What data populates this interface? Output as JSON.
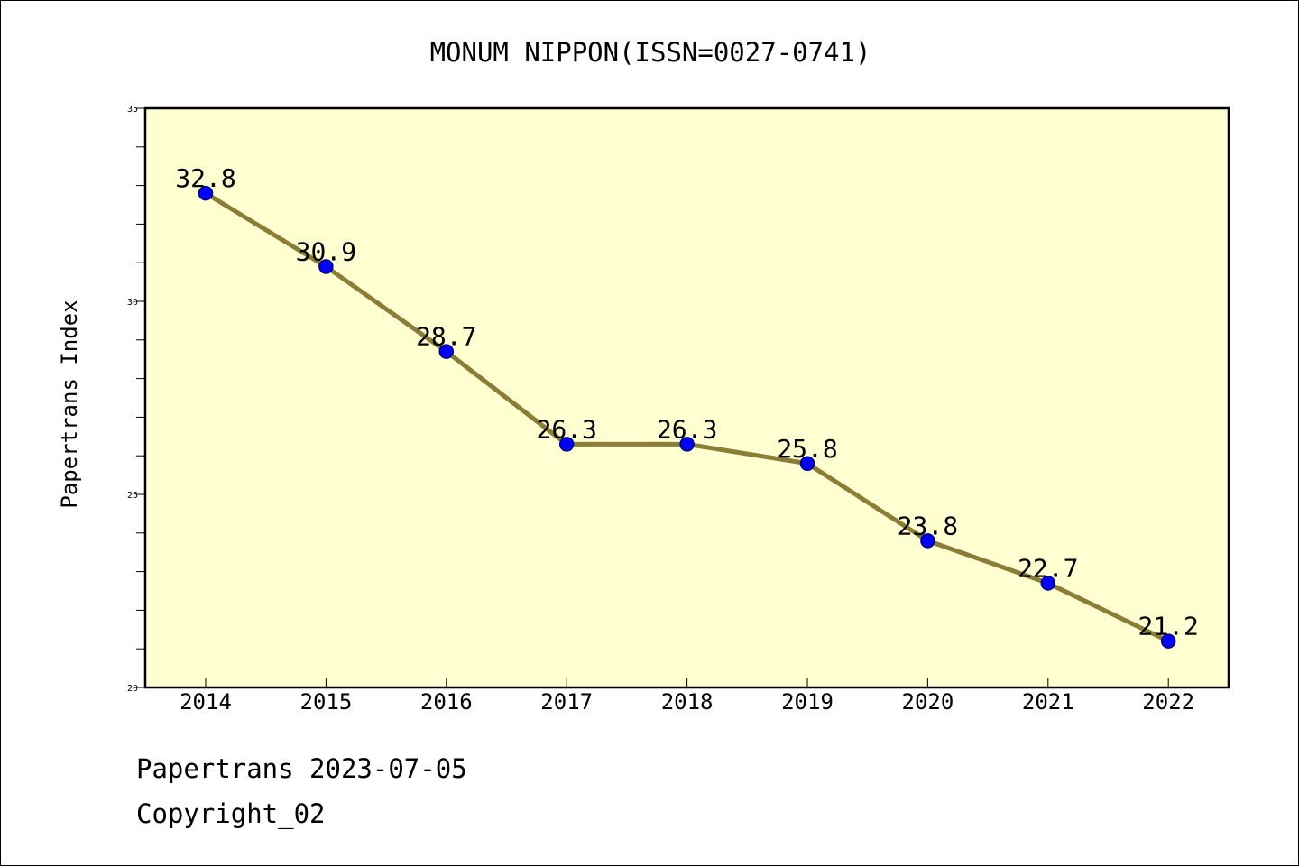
{
  "chart_data": {
    "type": "line",
    "title": "MONUM NIPPON(ISSN=0027-0741)",
    "xlabel": "",
    "ylabel": "Papertrans Index",
    "categories": [
      "2014",
      "2015",
      "2016",
      "2017",
      "2018",
      "2019",
      "2020",
      "2021",
      "2022"
    ],
    "series": [
      {
        "values": [
          32.8,
          30.9,
          28.7,
          26.3,
          26.3,
          25.8,
          23.8,
          22.7,
          21.2
        ],
        "labels": [
          "32.8",
          "30.9",
          "28.7",
          "26.3",
          "26.3",
          "25.8",
          "23.8",
          "22.7",
          "21.2"
        ]
      }
    ],
    "ylim": [
      20,
      35
    ],
    "yticks": [
      20,
      25,
      30,
      35
    ],
    "yticks_labels": [
      "20",
      "25",
      "30",
      "35"
    ],
    "grid": false,
    "colors": {
      "plot_background": "#ffffd2",
      "line": "#8b7d35",
      "marker": "#0000ff",
      "marker_edge": "#000080"
    }
  },
  "footer": {
    "line1": "Papertrans 2023-07-05",
    "line2": "Copyright_02"
  }
}
